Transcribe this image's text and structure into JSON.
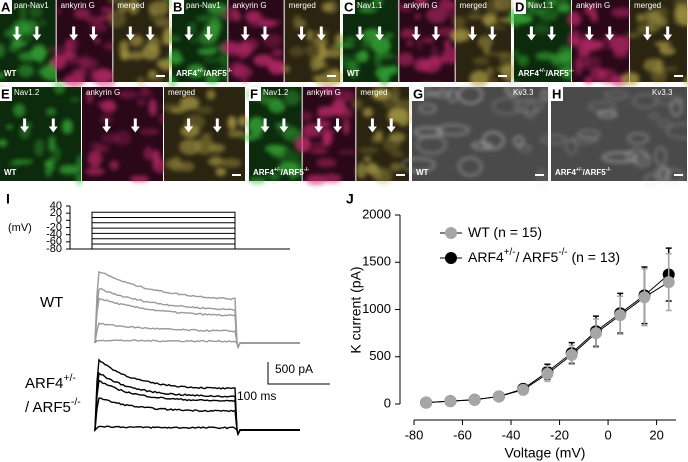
{
  "panels": [
    {
      "letter": "A",
      "channels": [
        "pan-Nav1",
        "ankyrin G",
        "merged"
      ],
      "genotype": [
        "WT"
      ]
    },
    {
      "letter": "B",
      "channels": [
        "pan-Nav1",
        "ankyrin G",
        "merged"
      ],
      "genotype": [
        "ARF4",
        "+/-",
        "/ARF5",
        "-/-"
      ]
    },
    {
      "letter": "C",
      "channels": [
        "Nav1.1",
        "ankyrin G",
        "merged"
      ],
      "genotype": [
        "WT"
      ]
    },
    {
      "letter": "D",
      "channels": [
        "Nav1.1",
        "ankyrin G",
        "merged"
      ],
      "genotype": [
        "ARF4",
        "+/-",
        "/ARF5",
        "-/-"
      ]
    },
    {
      "letter": "E",
      "channels": [
        "Nav1.2",
        "ankyrin G",
        "merged"
      ],
      "genotype": [
        "WT"
      ]
    },
    {
      "letter": "F",
      "channels": [
        "Nav1.2",
        "ankyrin G",
        "merged"
      ],
      "genotype": [
        "ARF4",
        "+/-",
        "/ARF5",
        "-/-"
      ]
    },
    {
      "letter": "G",
      "channels": [
        "Kv3.3"
      ],
      "genotype": [
        "WT"
      ]
    },
    {
      "letter": "H",
      "channels": [
        "Kv3.3"
      ],
      "genotype": [
        "ARF4",
        "+/-",
        "/ARF5",
        "-/-"
      ]
    }
  ],
  "panel_i": {
    "letter": "I",
    "protocol_unit": "(mV)",
    "protocol_ylim": [
      -80,
      40
    ],
    "protocol_ticks": [
      40,
      20,
      0,
      -20,
      -40,
      -60,
      -80
    ],
    "wt_label": "WT",
    "mut_label": [
      [
        "ARF4",
        "+/-"
      ],
      [
        "/ ARF5",
        "-/-"
      ]
    ],
    "scale_current": "500 pA",
    "scale_time": "100 ms"
  },
  "chart_data": {
    "type": "line",
    "letter": "J",
    "x_label": "Voltage (mV)",
    "y_label": "K current (pA)",
    "x": [
      -75,
      -65,
      -55,
      -45,
      -35,
      -25,
      -15,
      -5,
      5,
      15,
      25
    ],
    "xlim": [
      -80,
      28
    ],
    "xticks": [
      -80,
      -60,
      -40,
      -20,
      0,
      20
    ],
    "ylim": [
      0,
      2000
    ],
    "yticks": [
      0,
      500,
      1000,
      1500,
      2000
    ],
    "series": [
      {
        "name": [
          "WT (n = 15)"
        ],
        "color": "#a6a6a6",
        "values": [
          15,
          30,
          45,
          80,
          150,
          320,
          520,
          750,
          940,
          1130,
          1290
        ],
        "errors": [
          15,
          20,
          25,
          30,
          50,
          80,
          100,
          150,
          200,
          300,
          300
        ]
      },
      {
        "name": [
          "ARF4",
          "+/-",
          "/ ARF5",
          "-/-",
          " (n = 13)"
        ],
        "color": "#000000",
        "values": [
          15,
          30,
          45,
          80,
          160,
          340,
          540,
          770,
          960,
          1150,
          1370
        ],
        "errors": [
          15,
          20,
          25,
          30,
          50,
          80,
          110,
          160,
          210,
          300,
          280
        ]
      }
    ]
  }
}
